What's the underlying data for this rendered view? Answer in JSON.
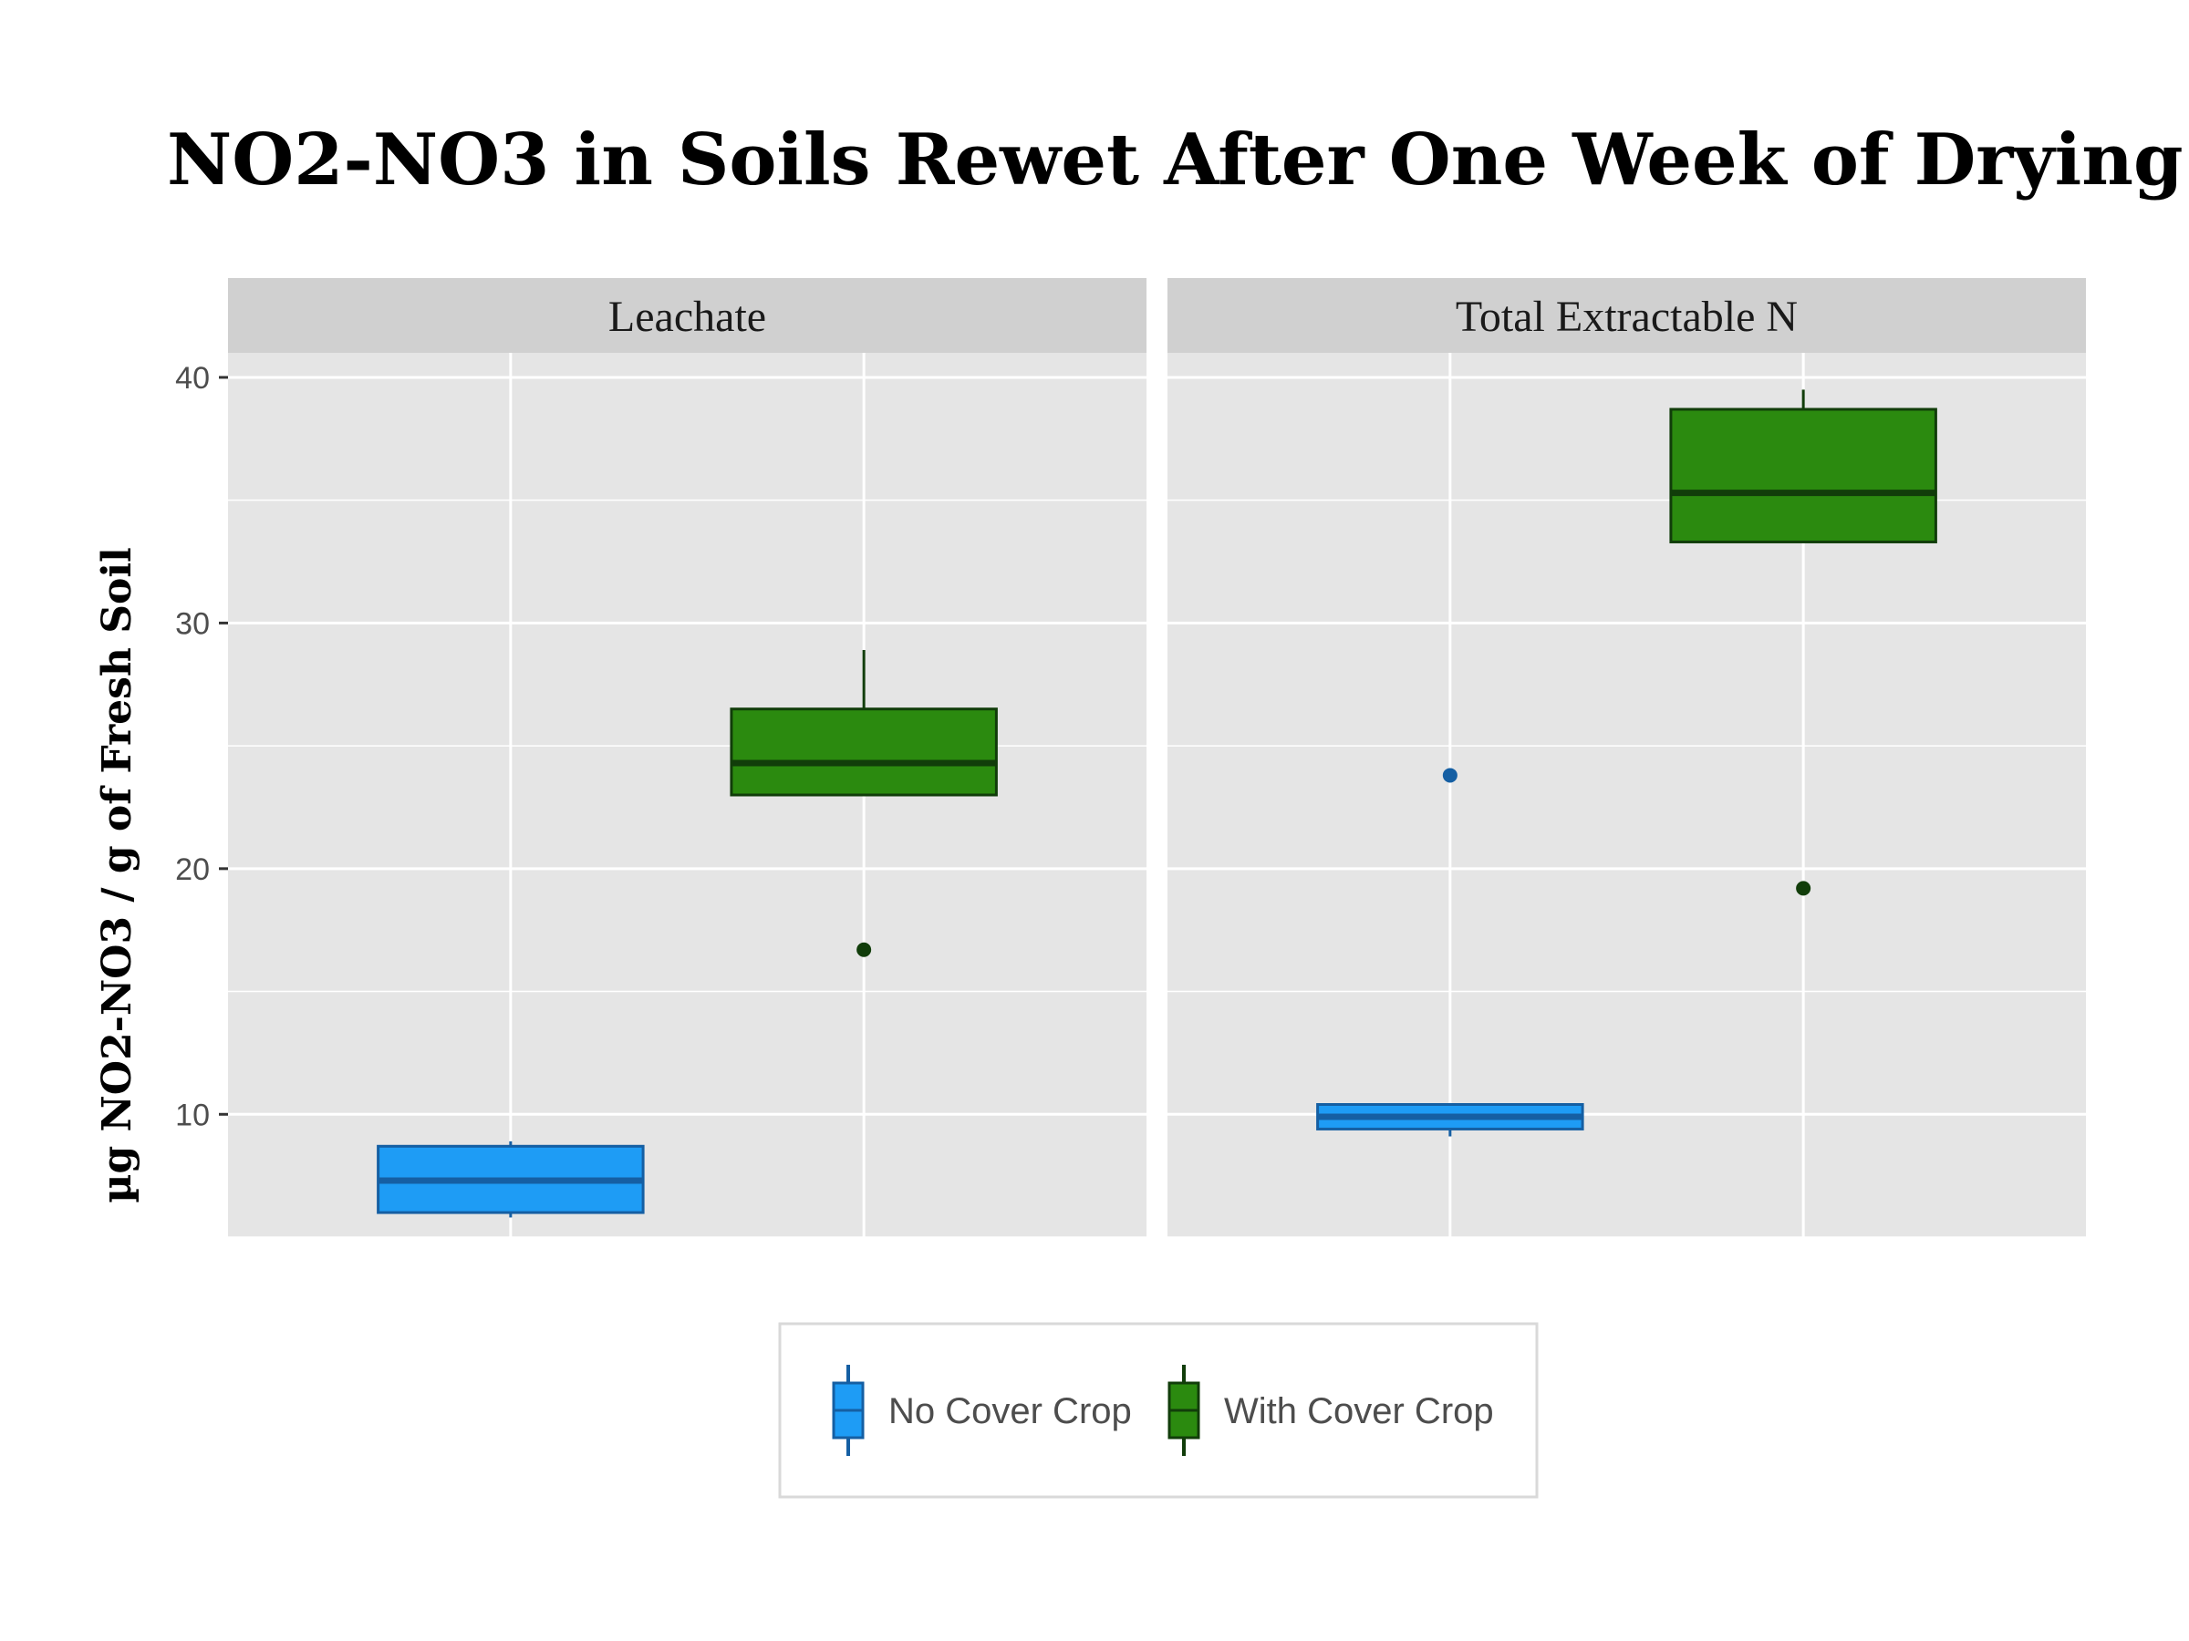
{
  "chart_data": {
    "type": "boxplot",
    "title": "NO2-NO3 in Soils Rewet After One Week of Drying",
    "ylabel": "µg NO2-NO3 / g of Fresh Soil",
    "xlabel": "",
    "ylim": [
      5,
      41
    ],
    "yticks": [
      10,
      20,
      30,
      40
    ],
    "grid": true,
    "legend_position": "bottom",
    "panels": [
      {
        "name": "Leachate",
        "boxes": [
          {
            "series": "No Cover Crop",
            "whisker_low": 5.8,
            "q1": 6.0,
            "median": 7.3,
            "q3": 8.7,
            "whisker_high": 8.9,
            "outliers": []
          },
          {
            "series": "With Cover Crop",
            "whisker_low": 23.0,
            "q1": 23.0,
            "median": 24.3,
            "q3": 26.5,
            "whisker_high": 28.9,
            "outliers": [
              16.7
            ]
          }
        ]
      },
      {
        "name": "Total Extractable N",
        "boxes": [
          {
            "series": "No Cover Crop",
            "whisker_low": 9.1,
            "q1": 9.4,
            "median": 9.9,
            "q3": 10.4,
            "whisker_high": 10.4,
            "outliers": [
              23.8
            ]
          },
          {
            "series": "With Cover Crop",
            "whisker_low": 33.3,
            "q1": 33.3,
            "median": 35.3,
            "q3": 38.7,
            "whisker_high": 39.5,
            "outliers": [
              19.2
            ]
          }
        ]
      }
    ],
    "series": [
      {
        "name": "No Cover Crop",
        "fill": "#1e9cf5",
        "stroke": "#155fa3"
      },
      {
        "name": "With Cover Crop",
        "fill": "#2b8a0f",
        "stroke": "#113d0a"
      }
    ]
  },
  "colors": {
    "panel_bg": "#e5e5e5",
    "strip_bg": "#d0d0d0",
    "grid": "#ffffff"
  }
}
